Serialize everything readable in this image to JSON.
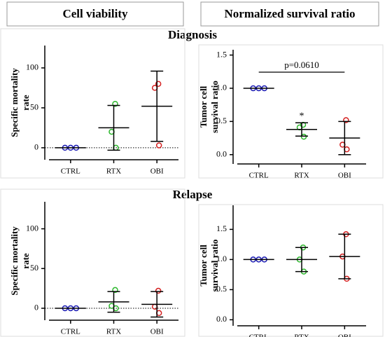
{
  "column_titles": [
    "Cell viability",
    "Normalized survival ratio"
  ],
  "row_titles": [
    "Diagnosis",
    "Relapse"
  ],
  "chart_data": [
    {
      "type": "scatter",
      "ylabel": [
        "Specific mortality",
        "rate"
      ],
      "categories": [
        "CTRL",
        "RTX",
        "OBI"
      ],
      "colors": [
        "#1a1ab4",
        "#2db82d",
        "#d42020"
      ],
      "points": [
        [
          0,
          0,
          0
        ],
        [
          55,
          20,
          0
        ],
        [
          80,
          75,
          3
        ]
      ],
      "mean": [
        0,
        25,
        52
      ],
      "sd": [
        0,
        28,
        44
      ],
      "reference_line": 0,
      "ylim": [
        -15,
        128
      ],
      "yticks": [
        0,
        50,
        100
      ]
    },
    {
      "type": "scatter",
      "ylabel": [
        "Tumor cell",
        "survival ratio"
      ],
      "categories": [
        "CTRL",
        "RTX",
        "OBI"
      ],
      "colors": [
        "#1a1ab4",
        "#2db82d",
        "#d42020"
      ],
      "points": [
        [
          1,
          1,
          1
        ],
        [
          0.45,
          0.41,
          0.27
        ],
        [
          0.52,
          0.15,
          0.08
        ]
      ],
      "mean": [
        1,
        0.38,
        0.25
      ],
      "sd": [
        0,
        0.1,
        0.25
      ],
      "annotations": [
        "*",
        "p=0.0610"
      ],
      "ylim": [
        -0.14,
        1.58
      ],
      "yticks": [
        {
          "value": 0,
          "label": "0.0"
        },
        {
          "value": 0.5,
          "label": "0.5"
        },
        {
          "value": 1,
          "label": "1.0"
        },
        {
          "value": 1.5,
          "label": "1.5"
        }
      ]
    },
    {
      "type": "scatter",
      "ylabel": [
        "Specific mortality",
        "rate"
      ],
      "categories": [
        "CTRL",
        "RTX",
        "OBI"
      ],
      "colors": [
        "#1a1ab4",
        "#2db82d",
        "#d42020"
      ],
      "points": [
        [
          0,
          0,
          0
        ],
        [
          23,
          3,
          0
        ],
        [
          22,
          2,
          -6
        ]
      ],
      "mean": [
        0,
        8,
        5
      ],
      "sd": [
        0,
        13,
        16
      ],
      "reference_line": 0,
      "ylim": [
        -15,
        134
      ],
      "yticks": [
        0,
        50,
        100
      ]
    },
    {
      "type": "scatter",
      "ylabel": [
        "Tumor cell",
        "survival ratio"
      ],
      "categories": [
        "CTRL",
        "RTX",
        "OBI"
      ],
      "colors": [
        "#1a1ab4",
        "#2db82d",
        "#d42020"
      ],
      "points": [
        [
          1,
          1,
          1
        ],
        [
          1.2,
          1,
          0.8
        ],
        [
          1.42,
          1.05,
          0.68
        ]
      ],
      "mean": [
        1,
        1,
        1.05
      ],
      "sd": [
        0,
        0.2,
        0.37
      ],
      "ylim": [
        -0.1,
        1.9
      ],
      "yticks": [
        {
          "value": 0,
          "label": "0.0"
        },
        {
          "value": 0.5,
          "label": "0.5"
        },
        {
          "value": 1,
          "label": "1.0"
        },
        {
          "value": 1.5,
          "label": "1.5"
        }
      ]
    }
  ]
}
